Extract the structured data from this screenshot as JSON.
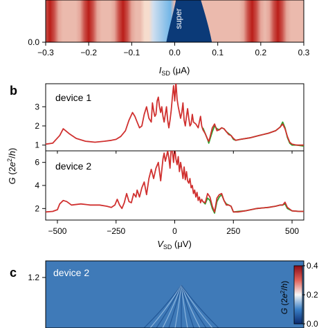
{
  "panel_a": {
    "overlay_label": "super",
    "chart_data": {
      "type": "heatmap",
      "colormap": "red-white-blue",
      "xlabel": "I_SD (μA)",
      "xlim": [
        -0.3,
        0.3
      ],
      "xticks": [
        -0.3,
        -0.2,
        -0.1,
        0.0,
        0.1,
        0.2,
        0.3
      ],
      "yticks": [
        0.0
      ],
      "stripe_centers_x": [
        -0.29,
        -0.2,
        -0.12,
        0.18,
        0.24
      ],
      "dark_region_x": [
        -0.01,
        0.08
      ]
    }
  },
  "panel_b": {
    "label": "b",
    "ylabel_text": "G (2e²/h)",
    "xlabel": "V_SD (μV)",
    "xlim": [
      -550,
      550
    ],
    "xticks": [
      -500,
      -250,
      0,
      250,
      500
    ],
    "top": {
      "name": "device 1",
      "ylim": [
        0.7,
        4.2
      ],
      "yticks": [
        1,
        2,
        3
      ]
    },
    "bottom": {
      "name": "device 2",
      "ylim": [
        1.0,
        7.0
      ],
      "yticks": [
        2,
        4,
        6
      ]
    },
    "colors": {
      "measured": "#d0302f",
      "fit": "#2ca02c"
    },
    "chart_data": {
      "type": "line",
      "series": [
        {
          "panel": "device 1",
          "role": "measured",
          "x": [
            -550,
            -520,
            -490,
            -475,
            -450,
            -420,
            -380,
            -340,
            -300,
            -270,
            -250,
            -230,
            -210,
            -195,
            -180,
            -170,
            -160,
            -150,
            -140,
            -130,
            -120,
            -110,
            -100,
            -95,
            -90,
            -85,
            -80,
            -75,
            -70,
            -65,
            -60,
            -55,
            -50,
            -45,
            -40,
            -35,
            -30,
            -25,
            -20,
            -15,
            -10,
            -5,
            0,
            5,
            10,
            15,
            20,
            25,
            30,
            35,
            40,
            45,
            50,
            55,
            60,
            65,
            70,
            75,
            80,
            90,
            100,
            110,
            115,
            120,
            130,
            140,
            145,
            150,
            160,
            170,
            180,
            190,
            200,
            210,
            220,
            230,
            240,
            250,
            260,
            280,
            320,
            360,
            400,
            430,
            450,
            460,
            470,
            480,
            490,
            500,
            520,
            550
          ],
          "y": [
            1.05,
            1.1,
            1.5,
            1.85,
            1.6,
            1.35,
            1.2,
            1.15,
            1.2,
            1.25,
            1.3,
            1.45,
            1.75,
            2.3,
            2.7,
            2.5,
            2.2,
            1.9,
            2.0,
            2.6,
            3.0,
            2.4,
            2.2,
            3.2,
            2.8,
            2.5,
            2.6,
            3.3,
            3.5,
            3.0,
            2.7,
            3.0,
            2.5,
            2.2,
            2.6,
            3.0,
            2.3,
            1.9,
            2.3,
            2.8,
            3.5,
            4.1,
            3.3,
            4.3,
            3.4,
            3.0,
            2.7,
            2.4,
            2.7,
            3.2,
            2.3,
            2.0,
            2.5,
            2.9,
            2.4,
            2.0,
            2.1,
            2.6,
            2.2,
            2.1,
            1.9,
            2.5,
            2.0,
            1.8,
            1.6,
            1.3,
            1.2,
            1.4,
            1.9,
            2.1,
            1.75,
            1.8,
            1.9,
            1.85,
            1.7,
            1.55,
            1.5,
            1.35,
            1.25,
            1.3,
            1.38,
            1.5,
            1.62,
            1.75,
            1.95,
            2.1,
            1.85,
            1.45,
            1.15,
            1.05,
            1.0,
            1.0
          ]
        },
        {
          "panel": "device 1",
          "role": "fit",
          "x": [
            120,
            130,
            140,
            145,
            150,
            160,
            170,
            180,
            190,
            200,
            210,
            220,
            230,
            240,
            250,
            260,
            280,
            320,
            360,
            400,
            430,
            450,
            460,
            470,
            480,
            490,
            500,
            520,
            550
          ],
          "y": [
            1.9,
            1.6,
            1.3,
            1.1,
            1.3,
            1.7,
            2.0,
            1.85,
            1.8,
            1.9,
            1.85,
            1.7,
            1.6,
            1.5,
            1.3,
            1.25,
            1.3,
            1.38,
            1.5,
            1.62,
            1.75,
            1.95,
            2.2,
            1.9,
            1.4,
            1.1,
            1.0,
            1.0,
            0.95
          ]
        },
        {
          "panel": "device 2",
          "role": "measured",
          "x": [
            -550,
            -520,
            -500,
            -490,
            -475,
            -460,
            -440,
            -400,
            -360,
            -320,
            -290,
            -270,
            -255,
            -245,
            -235,
            -225,
            -215,
            -205,
            -195,
            -185,
            -175,
            -165,
            -160,
            -150,
            -140,
            -130,
            -120,
            -110,
            -100,
            -90,
            -80,
            -70,
            -60,
            -50,
            -45,
            -40,
            -35,
            -30,
            -25,
            -20,
            -15,
            -10,
            -5,
            0,
            5,
            10,
            15,
            20,
            25,
            30,
            35,
            40,
            45,
            50,
            55,
            60,
            65,
            70,
            75,
            80,
            85,
            90,
            95,
            100,
            105,
            110,
            115,
            120,
            130,
            140,
            150,
            160,
            170,
            180,
            190,
            200,
            210,
            220,
            230,
            240,
            250,
            270,
            300,
            350,
            400,
            430,
            450,
            460,
            470,
            480,
            500,
            530,
            550
          ],
          "y": [
            1.7,
            1.75,
            1.9,
            2.4,
            2.7,
            2.6,
            2.3,
            2.4,
            2.3,
            2.3,
            2.2,
            2.1,
            2.3,
            2.8,
            2.3,
            2.0,
            2.5,
            3.3,
            2.6,
            2.5,
            3.3,
            3.0,
            3.6,
            3.0,
            3.8,
            4.3,
            3.2,
            4.6,
            5.4,
            4.6,
            5.5,
            6.0,
            4.4,
            6.3,
            6.8,
            6.1,
            6.5,
            7.0,
            6.4,
            5.5,
            7.2,
            7.0,
            6.0,
            7.3,
            6.3,
            5.8,
            6.5,
            5.2,
            6.0,
            5.4,
            4.6,
            5.6,
            4.5,
            5.2,
            4.4,
            4.2,
            4.6,
            3.8,
            4.0,
            3.3,
            3.6,
            3.0,
            3.4,
            2.7,
            3.0,
            2.5,
            2.8,
            2.6,
            2.5,
            3.3,
            3.0,
            2.2,
            1.7,
            2.9,
            3.2,
            3.3,
            2.7,
            2.3,
            2.3,
            2.2,
            1.7,
            1.7,
            1.8,
            2.0,
            2.1,
            2.2,
            2.3,
            2.3,
            2.55,
            2.1,
            1.8,
            1.75,
            1.75
          ]
        },
        {
          "panel": "device 2",
          "role": "fit",
          "x": [
            120,
            130,
            140,
            150,
            160,
            170,
            180,
            190,
            200,
            210,
            220,
            230,
            240,
            250,
            270,
            300,
            350,
            400,
            430,
            450,
            460,
            470,
            480,
            500,
            530,
            550
          ],
          "y": [
            2.6,
            2.4,
            2.9,
            2.7,
            2.0,
            1.6,
            2.6,
            3.0,
            3.2,
            2.7,
            2.4,
            2.3,
            2.2,
            1.7,
            1.75,
            1.8,
            2.0,
            2.1,
            2.2,
            2.3,
            2.3,
            2.4,
            2.0,
            1.8,
            1.75,
            1.75
          ]
        }
      ]
    }
  },
  "panel_c": {
    "label": "c",
    "device_name": "device 2",
    "yticks": [
      1.2
    ],
    "colorbar": {
      "label": "G (2e²/h)",
      "ticks": [
        0.0,
        0.2,
        0.4
      ]
    },
    "chart_data": {
      "type": "heatmap",
      "colormap": "blue-white-red",
      "background_value": 0.06,
      "colorbar_range": [
        0.0,
        0.4
      ]
    }
  }
}
